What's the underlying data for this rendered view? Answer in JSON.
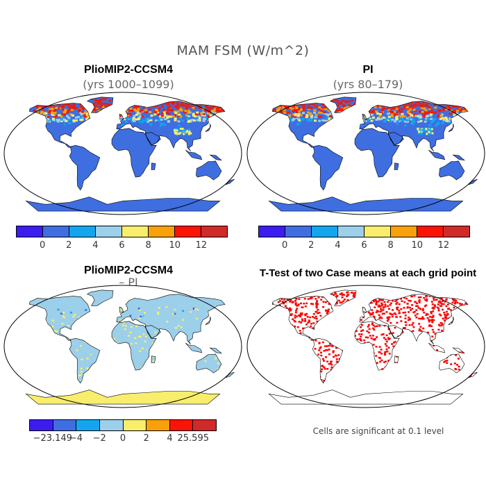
{
  "figure": {
    "title": "MAM FSM (W/m^2)"
  },
  "panels": [
    {
      "title": "PlioMIP2-CCSM4",
      "subtitle": "(yrs 1000–1099)"
    },
    {
      "title": "PI",
      "subtitle": "(yrs 80–179)"
    },
    {
      "title": "PlioMIP2-CCSM4",
      "subtitle": "– PI"
    },
    {
      "title": "T-Test of two Case means at each grid point",
      "subtitle": ""
    }
  ],
  "colorbars": {
    "absolute": {
      "colors": [
        "#3b1df0",
        "#3f6ee0",
        "#13a6ef",
        "#9ccfea",
        "#f8ee6c",
        "#f8a10a",
        "#fa1405",
        "#d02a2a"
      ],
      "tick_labels": [
        "0",
        "2",
        "4",
        "6",
        "8",
        "10",
        "12"
      ]
    },
    "difference": {
      "colors": [
        "#3b1df0",
        "#3f6ee0",
        "#13a6ef",
        "#9ccfea",
        "#f8ee6c",
        "#f8a10a",
        "#fa1405",
        "#d02a2a"
      ],
      "tick_labels": [
        "−23.149",
        "−4",
        "−2",
        "0",
        "2",
        "4",
        "25.595"
      ]
    }
  },
  "ttest_note": "Cells are significant at 0.1 level",
  "map_colors": {
    "ocean": "#ffffff",
    "land_absolute": "#3f6ee0",
    "land_difference": "#9ccfea",
    "significant": "#ff0000",
    "outline": "#000000"
  }
}
